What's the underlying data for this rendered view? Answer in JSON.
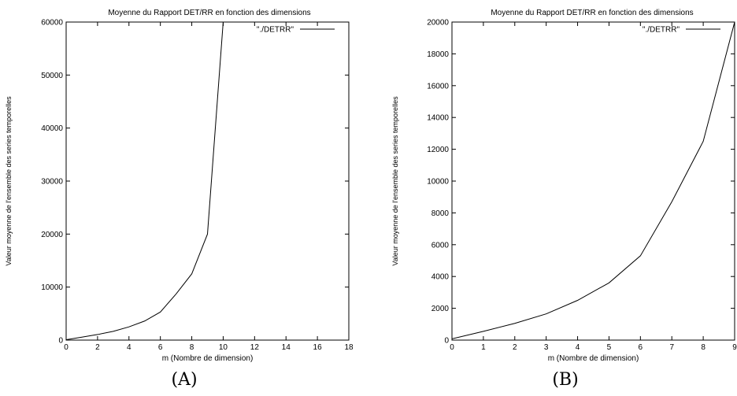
{
  "chart_data": [
    {
      "type": "line",
      "panel_label": "(A)",
      "title": "Moyenne du Rapport DET/RR en fonction des dimensions",
      "xlabel": "m (Nombre de dimension)",
      "ylabel": "Valeur moyenne de l'ensemble des series temporelles",
      "xlim": [
        0,
        18
      ],
      "ylim": [
        0,
        60000
      ],
      "xticks": [
        0,
        2,
        4,
        6,
        8,
        10,
        12,
        14,
        16,
        18
      ],
      "yticks": [
        0,
        10000,
        20000,
        30000,
        40000,
        50000,
        60000
      ],
      "legend_position": "top-right",
      "grid": false,
      "series": [
        {
          "name": "\"./DETRR\"",
          "color": "#000000",
          "x": [
            0,
            1,
            2,
            3,
            4,
            5,
            6,
            7,
            8,
            9,
            10
          ],
          "y": [
            80,
            550,
            1050,
            1650,
            2500,
            3600,
            5300,
            8700,
            12500,
            20000,
            60000
          ]
        }
      ]
    },
    {
      "type": "line",
      "panel_label": "(B)",
      "title": "Moyenne du Rapport DET/RR en fonction des dimensions",
      "xlabel": "m (Nombre de dimension)",
      "ylabel": "Valeur moyenne de l'ensemble des series temporelles",
      "xlim": [
        0,
        9
      ],
      "ylim": [
        0,
        20000
      ],
      "xticks": [
        0,
        1,
        2,
        3,
        4,
        5,
        6,
        7,
        8,
        9
      ],
      "yticks": [
        0,
        2000,
        4000,
        6000,
        8000,
        10000,
        12000,
        14000,
        16000,
        18000,
        20000
      ],
      "legend_position": "top-right",
      "grid": false,
      "series": [
        {
          "name": "\"./DETRR\"",
          "color": "#000000",
          "x": [
            0,
            1,
            2,
            3,
            4,
            5,
            6,
            7,
            8,
            9
          ],
          "y": [
            80,
            550,
            1050,
            1650,
            2500,
            3600,
            5300,
            8700,
            12500,
            20000
          ]
        }
      ]
    }
  ]
}
